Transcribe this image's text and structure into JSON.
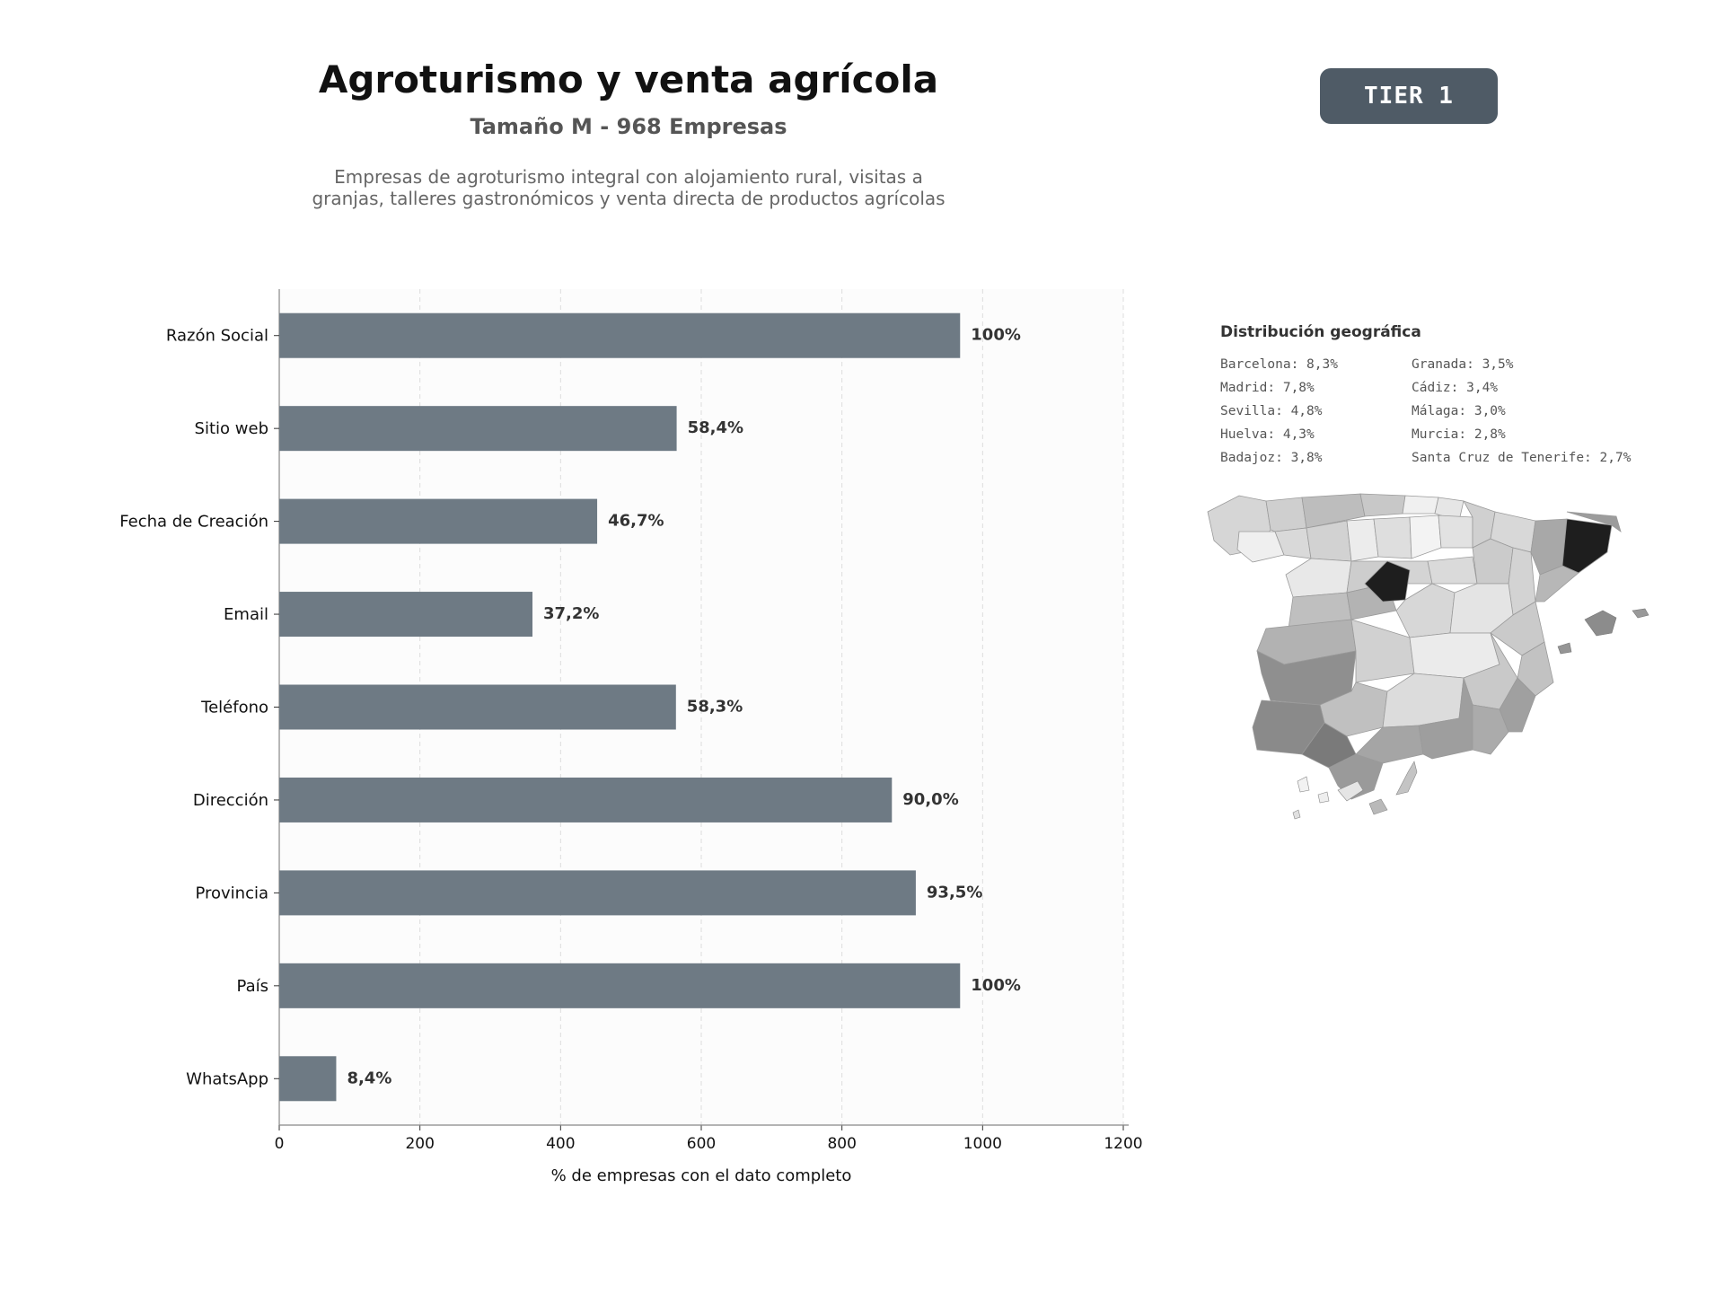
{
  "header": {
    "title": "Agroturismo y venta agrícola",
    "subtitle": "Tamaño M - 968 Empresas",
    "description_lines": [
      "Empresas de agroturismo integral con alojamiento rural, visitas a",
      "granjas, talleres gastronómicos y venta directa de productos agrícolas"
    ],
    "tier_badge": "TIER 1"
  },
  "colors": {
    "bar": "#6e7a84",
    "badge": "#4f5b66",
    "plot_bg": "#fcfcfc",
    "map_darkest": "#1e1e1e"
  },
  "chart_data": {
    "type": "bar",
    "orientation": "horizontal",
    "categories": [
      "Razón Social",
      "Sitio web",
      "Fecha de Creación",
      "Email",
      "Teléfono",
      "Dirección",
      "Provincia",
      "País",
      "WhatsApp"
    ],
    "values": [
      968,
      565,
      452,
      360,
      564,
      871,
      905,
      968,
      81
    ],
    "value_labels": [
      "100%",
      "58,4%",
      "46,7%",
      "37,2%",
      "58,3%",
      "90,0%",
      "93,5%",
      "100%",
      "8,4%"
    ],
    "xlabel": "% de empresas con el dato completo",
    "ylabel": "",
    "xlim": [
      0,
      1200
    ],
    "xticks": [
      0,
      200,
      400,
      600,
      800,
      1000,
      1200
    ],
    "grid": "vertical dashed"
  },
  "geo": {
    "title": "Distribución geográfica",
    "items": [
      "Barcelona: 8,3%",
      "Granada: 3,5%",
      "Madrid: 7,8%",
      "Cádiz: 3,4%",
      "Sevilla: 4,8%",
      "Málaga: 3,0%",
      "Huelva: 4,3%",
      "Murcia: 2,8%",
      "Badajoz: 3,8%",
      "Santa Cruz de Tenerife: 2,7%"
    ]
  }
}
